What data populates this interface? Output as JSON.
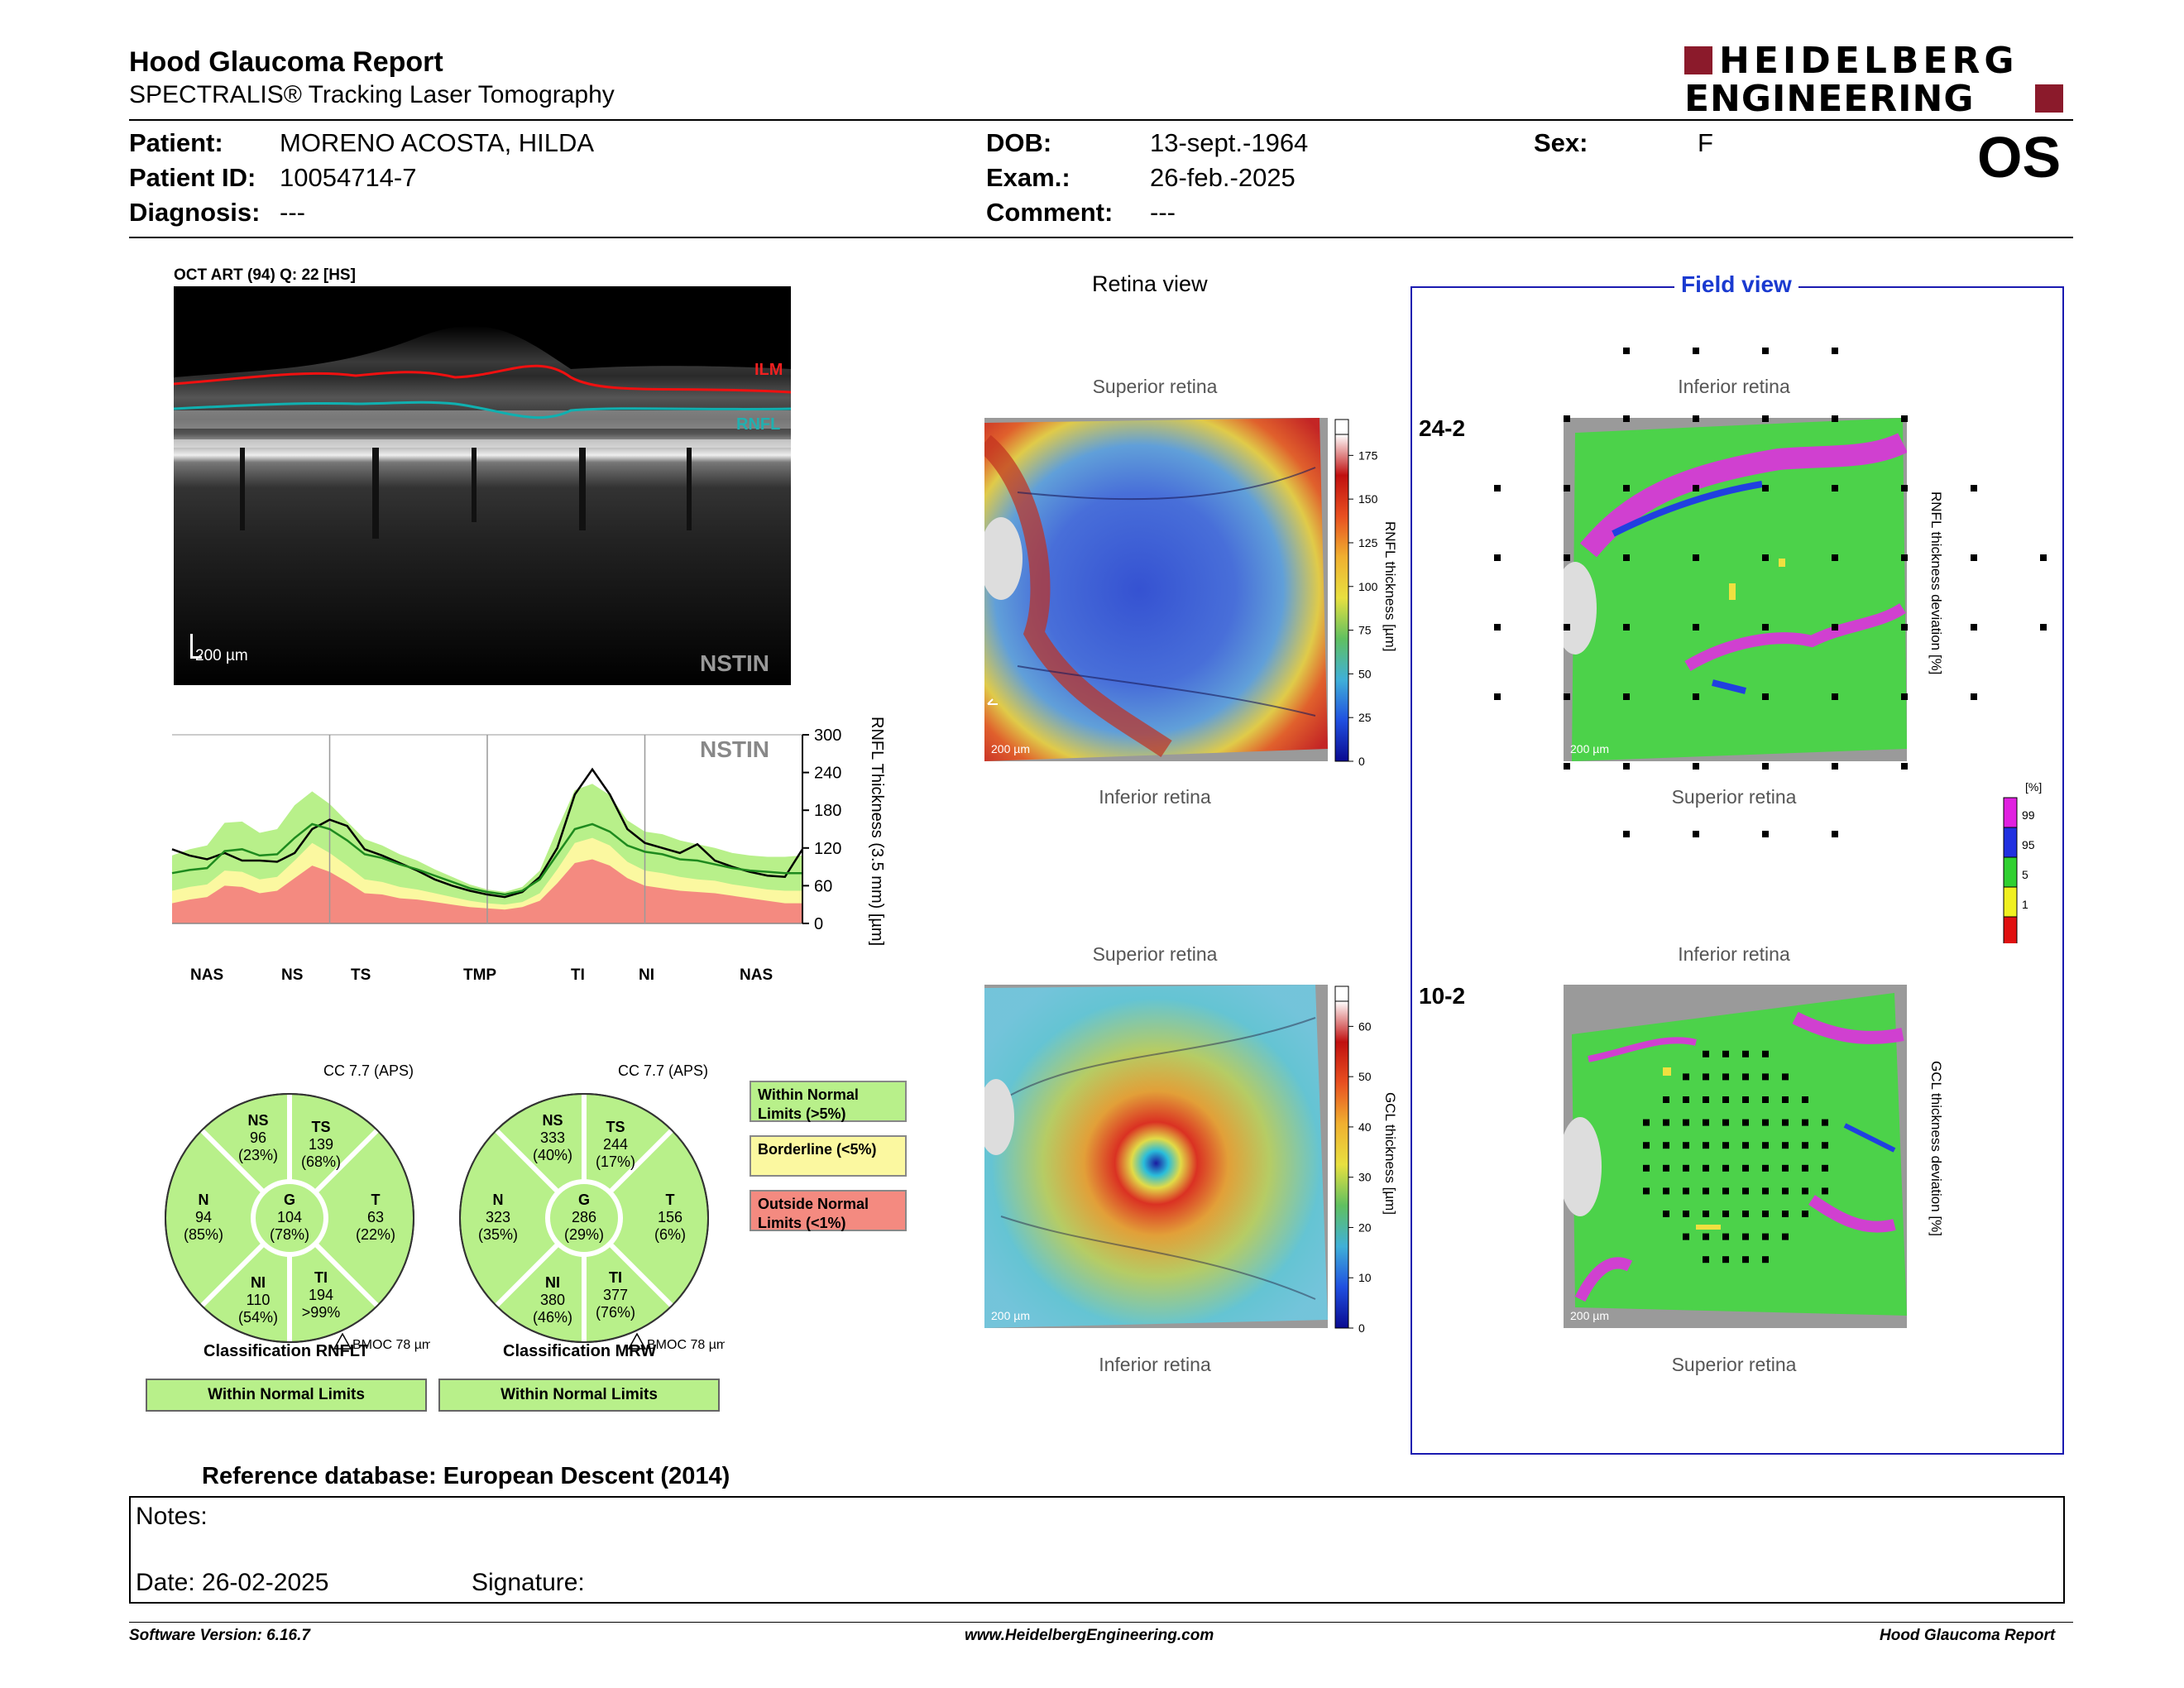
{
  "header": {
    "title": "Hood Glaucoma Report",
    "subtitle": "SPECTRALIS® Tracking Laser Tomography",
    "logo_line1": "HEIDELBERG",
    "logo_line2": "ENGINEERING",
    "eye": "OS"
  },
  "patient": {
    "patient_label": "Patient:",
    "patient_value": "MORENO ACOSTA, HILDA",
    "id_label": "Patient ID:",
    "id_value": "10054714-7",
    "diag_label": "Diagnosis:",
    "diag_value": "---",
    "dob_label": "DOB:",
    "dob_value": "13-sept.-1964",
    "exam_label": "Exam.:",
    "exam_value": "26-feb.-2025",
    "comment_label": "Comment:",
    "comment_value": "---",
    "sex_label": "Sex:",
    "sex_value": "F"
  },
  "oct": {
    "caption": "OCT ART (94) Q: 22 [HS]",
    "ilm": "ILM",
    "rnfl": "RNFL",
    "scale": "200 µm",
    "mode": "NSTIN"
  },
  "chart_data": {
    "type": "line",
    "title": "NSTIN",
    "ylabel": "RNFL Thickness (3.5 mm) [µm]",
    "yticks": [
      "300",
      "240",
      "180",
      "120",
      "60",
      "0"
    ],
    "ylim": [
      0,
      300
    ],
    "sectors": [
      "NAS",
      "NS",
      "TS",
      "TMP",
      "TI",
      "NI",
      "NAS"
    ],
    "x": [
      0,
      10,
      20,
      30,
      40,
      50,
      60,
      70,
      80,
      90,
      100,
      110,
      120,
      130,
      140,
      150,
      160,
      170,
      180,
      190,
      200,
      210,
      220,
      230,
      240,
      250,
      260,
      270,
      280,
      290,
      300,
      310,
      320,
      330,
      340,
      350,
      360
    ],
    "series": [
      {
        "values": [
          118,
          108,
          102,
          112,
          100,
          100,
          98,
          112,
          150,
          165,
          155,
          118,
          108,
          96,
          84,
          70,
          60,
          52,
          46,
          42,
          50,
          74,
          120,
          205,
          245,
          205,
          150,
          128,
          120,
          112,
          126,
          100,
          90,
          82,
          76,
          74,
          118
        ]
      },
      {
        "values": [
          80,
          85,
          88,
          115,
          118,
          108,
          110,
          136,
          158,
          150,
          132,
          110,
          104,
          94,
          86,
          76,
          66,
          56,
          50,
          46,
          52,
          70,
          110,
          150,
          158,
          146,
          124,
          114,
          110,
          102,
          100,
          94,
          88,
          84,
          82,
          80,
          80
        ]
      }
    ],
    "band_outside": [
      32,
      38,
      42,
      60,
      58,
      48,
      52,
      72,
      92,
      82,
      66,
      48,
      46,
      40,
      38,
      34,
      30,
      26,
      24,
      22,
      26,
      36,
      64,
      96,
      102,
      92,
      72,
      60,
      56,
      52,
      50,
      48,
      44,
      40,
      36,
      32,
      32
    ],
    "band_borderline": [
      52,
      58,
      62,
      84,
      82,
      70,
      74,
      100,
      128,
      112,
      92,
      70,
      66,
      58,
      54,
      48,
      42,
      36,
      32,
      30,
      34,
      48,
      86,
      128,
      136,
      124,
      98,
      84,
      80,
      74,
      70,
      68,
      62,
      58,
      54,
      52,
      52
    ],
    "band_normal": [
      108,
      118,
      124,
      160,
      162,
      144,
      150,
      188,
      210,
      190,
      162,
      134,
      124,
      110,
      100,
      86,
      74,
      62,
      54,
      50,
      58,
      84,
      150,
      212,
      222,
      204,
      164,
      146,
      142,
      132,
      126,
      120,
      112,
      108,
      106,
      106,
      108
    ]
  },
  "circle_rnflt": {
    "cc": "CC 7.7 (APS)",
    "NS": {
      "label": "NS",
      "v": "96",
      "p": "(23%)"
    },
    "TS": {
      "label": "TS",
      "v": "139",
      "p": "(68%)"
    },
    "N": {
      "label": "N",
      "v": "94",
      "p": "(85%)"
    },
    "G": {
      "label": "G",
      "v": "104",
      "p": "(78%)"
    },
    "T": {
      "label": "T",
      "v": "63",
      "p": "(22%)"
    },
    "NI": {
      "label": "NI",
      "v": "110",
      "p": "(54%)"
    },
    "TI": {
      "label": "TI",
      "v": "194",
      "p": ">99%"
    },
    "bmoc": "BMOC 78 µm",
    "classification": "Classification RNFLT",
    "result": "Within Normal Limits"
  },
  "circle_mrw": {
    "cc": "CC 7.7 (APS)",
    "NS": {
      "label": "NS",
      "v": "333",
      "p": "(40%)"
    },
    "TS": {
      "label": "TS",
      "v": "244",
      "p": "(17%)"
    },
    "N": {
      "label": "N",
      "v": "323",
      "p": "(35%)"
    },
    "G": {
      "label": "G",
      "v": "286",
      "p": "(29%)"
    },
    "T": {
      "label": "T",
      "v": "156",
      "p": "(6%)"
    },
    "NI": {
      "label": "NI",
      "v": "380",
      "p": "(46%)"
    },
    "TI": {
      "label": "TI",
      "v": "377",
      "p": "(76%)"
    },
    "bmoc": "BMOC 78 µm",
    "classification": "Classification MRW",
    "result": "Within Normal Limits"
  },
  "legend": {
    "normal_1": "Within Normal",
    "normal_2": "Limits (>5%)",
    "borderline": "Borderline (<5%)",
    "outside_1": "Outside Normal",
    "outside_2": "Limits (<1%)",
    "color_normal": "#b8f08a",
    "color_borderline": "#fbf8a0",
    "color_outside": "#f48a80"
  },
  "retina_view": {
    "title": "Retina view",
    "superior": "Superior retina",
    "inferior": "Inferior retina",
    "rnfl_axis": "RNFL thickness [µm]",
    "rnfl_ticks": [
      "175",
      "150",
      "125",
      "100",
      "75",
      "50",
      "25",
      "0"
    ],
    "gcl_axis": "GCL thickness [µm]",
    "gcl_ticks": [
      "60",
      "50",
      "40",
      "30",
      "20",
      "10",
      "0"
    ],
    "scale": "200 µm"
  },
  "field_view": {
    "title": "Field view",
    "inferior": "Inferior retina",
    "superior": "Superior retina",
    "label_24": "24-2",
    "label_10": "10-2",
    "rnfl_dev_axis": "RNFL thickness deviation [%]",
    "gcl_dev_axis": "GCL thickness deviation [%]",
    "pct_unit": "[%]",
    "pct_ticks": [
      "99",
      "95",
      "5",
      "1"
    ]
  },
  "footer": {
    "reference": "Reference database: European Descent (2014)",
    "notes": "Notes:",
    "date": "Date: 26-02-2025",
    "signature": "Signature:",
    "software": "Software Version: 6.16.7",
    "website": "www.HeidelbergEngineering.com",
    "report": "Hood Glaucoma Report"
  }
}
